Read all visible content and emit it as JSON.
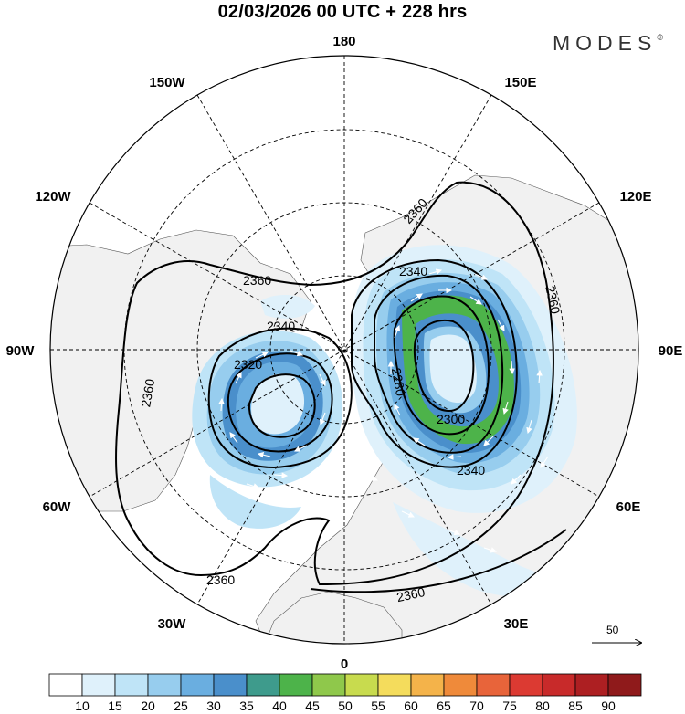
{
  "header": {
    "title": "02/03/2026  00 UTC  + 228 hrs",
    "brand": "MODES",
    "brand_mark": "©"
  },
  "map": {
    "projection": "north-polar-stereographic",
    "longitude_labels": [
      "180",
      "150E",
      "120E",
      "90E",
      "60E",
      "30E",
      "0",
      "30W",
      "60W",
      "90W",
      "120W",
      "150W"
    ],
    "contour_labels": [
      "2360",
      "2340",
      "2320",
      "2280",
      "2300",
      "2340",
      "2360",
      "2360",
      "2360",
      "2360",
      "2340",
      "2360"
    ],
    "vector_reference": {
      "value": "50",
      "icon": "arrow-right-icon"
    }
  },
  "colorbar": {
    "labels": [
      "10",
      "15",
      "20",
      "25",
      "30",
      "35",
      "40",
      "45",
      "50",
      "55",
      "60",
      "65",
      "70",
      "75",
      "80",
      "85",
      "90"
    ],
    "colors": [
      "#ffffff",
      "#dff1fb",
      "#bfe4f7",
      "#97cdee",
      "#6aaee0",
      "#4a8fcb",
      "#3e9b8c",
      "#4db34a",
      "#8fc84b",
      "#c8db4e",
      "#f4dc5c",
      "#f4b34a",
      "#ef8a3a",
      "#e8643a",
      "#dc3a32",
      "#c82a2a",
      "#ad1f22",
      "#8f1a1b"
    ]
  }
}
